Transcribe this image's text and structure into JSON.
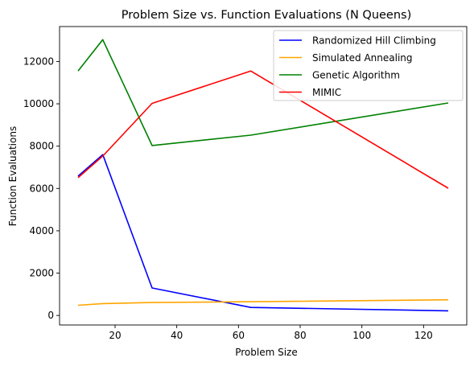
{
  "chart_data": {
    "type": "line",
    "title": "Problem Size vs. Function Evaluations (N Queens)",
    "xlabel": "Problem Size",
    "ylabel": "Function Evaluations",
    "xlim": [
      2,
      134
    ],
    "ylim": [
      -450,
      13650
    ],
    "xticks": [
      20,
      40,
      60,
      80,
      100,
      120
    ],
    "yticks": [
      0,
      2000,
      4000,
      6000,
      8000,
      10000,
      12000
    ],
    "x": [
      8,
      16,
      32,
      64,
      128
    ],
    "legend_position": "top-right",
    "grid": false,
    "series": [
      {
        "name": "Randomized Hill Climbing",
        "color": "#0000ff",
        "values": [
          6580,
          7600,
          1300,
          380,
          220
        ]
      },
      {
        "name": "Simulated Annealing",
        "color": "#ffa500",
        "values": [
          480,
          560,
          610,
          650,
          740
        ]
      },
      {
        "name": "Genetic Algorithm",
        "color": "#008000",
        "values": [
          11550,
          13030,
          8030,
          8520,
          10040
        ]
      },
      {
        "name": "MIMIC",
        "color": "#ff0000",
        "values": [
          6510,
          7530,
          10020,
          11550,
          6010
        ]
      }
    ]
  }
}
